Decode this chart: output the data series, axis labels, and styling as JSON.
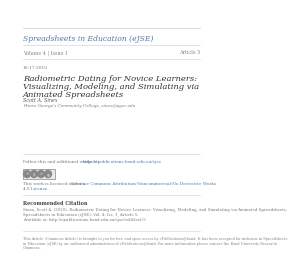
{
  "background_color": "#ffffff",
  "journal_title": "Spreadsheets in Education (eJSE)",
  "journal_title_color": "#5577aa",
  "journal_title_fontsize": 5.5,
  "volume_text": "Volume 4 | Issue 1",
  "volume_color": "#888888",
  "volume_fontsize": 3.5,
  "article_text": "Article 5",
  "article_color": "#888888",
  "article_fontsize": 3.5,
  "date_text": "10-17-2010",
  "date_color": "#777777",
  "date_fontsize": 3.2,
  "paper_title_line1": "Radiometric Dating for Novice Learners:",
  "paper_title_line2": "Visualizing, Modeling, and Simulating via",
  "paper_title_line3": "Animated Spreadsheets",
  "paper_title_color": "#333333",
  "paper_title_fontsize": 6.0,
  "author_name": "Scott A. Sinex",
  "author_color": "#555555",
  "author_fontsize": 3.5,
  "affiliation": "Prince George's Community College, sinex@pgcc.edu",
  "affiliation_color": "#777777",
  "affiliation_fontsize": 3.0,
  "follow_text": "Follow this and additional works at: ",
  "follow_link": "http://epublications.bond.edu.au/ejse",
  "follow_color": "#777777",
  "follow_link_color": "#5577aa",
  "follow_fontsize": 3.0,
  "license_text": "This work is licensed under a ",
  "license_link1": "Creative Commons Attribution-Noncommercial-No Derivative Works",
  "license_link2": "4.0 License.",
  "license_color": "#777777",
  "license_link_color": "#5577aa",
  "license_fontsize": 3.0,
  "recommended_title": "Recommended Citation",
  "recommended_color": "#444444",
  "recommended_fontsize": 3.5,
  "citation_line1": "Sinex, Scott A. (2010). Radiometric Dating for Novice Learners: Visualizing, Modeling, and Simulating via Animated Spreadsheets.",
  "citation_line2": "Spreadsheets in Education (eJSE): Vol. 4: Iss. 1, Article 5.",
  "citation_line3": "Available at: http://epublications.bond.edu.au/ejse/vol4/iss1/5",
  "citation_color": "#777777",
  "citation_fontsize": 2.8,
  "footer_line1": "This Article (Commons Article) is brought to you for free and open access by ePublications@bond. It has been accepted for inclusion in Spreadsheets",
  "footer_line2": "in Education (eJSE) by an authorized administrator of ePublications@bond. For more information please contact the Bond University Research",
  "footer_line3": "Commons.",
  "footer_color": "#888888",
  "footer_fontsize": 2.5,
  "separator_color": "#cccccc",
  "cc_icon_color": "#888888",
  "cc_box_color": "#e8e8e8"
}
